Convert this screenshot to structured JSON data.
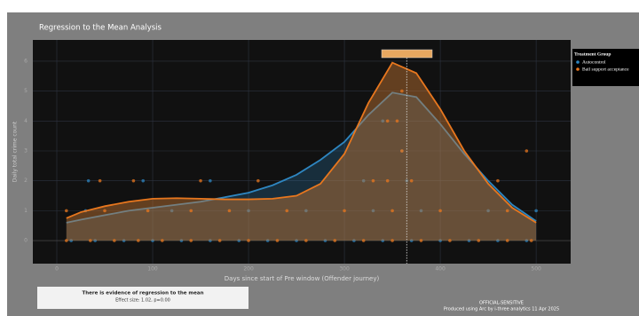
{
  "chart_data": {
    "type": "line",
    "title": "Regression to the Mean Analysis",
    "x_label": "Days since start of Pre window (Offender journey)",
    "y_label": "Daily total crime count",
    "legend_title": "Treatment Group",
    "xlim": [
      -25,
      536
    ],
    "ylim": [
      -0.77,
      6.71
    ],
    "xticks": [
      0,
      100,
      200,
      300,
      400,
      500
    ],
    "yticks": [
      0,
      1,
      2,
      3,
      4,
      5,
      6
    ],
    "grid": true,
    "reference_x": 365,
    "series": [
      {
        "name": "Autocontrol",
        "color": "#2e86c1",
        "fill": "rgba(46,134,193,0.25)",
        "x": [
          10,
          25,
          50,
          75,
          100,
          125,
          150,
          175,
          200,
          225,
          250,
          275,
          300,
          325,
          350,
          375,
          400,
          425,
          450,
          475,
          500
        ],
        "values": [
          0.6,
          0.7,
          0.85,
          1.0,
          1.1,
          1.2,
          1.3,
          1.45,
          1.6,
          1.85,
          2.2,
          2.7,
          3.3,
          4.2,
          4.95,
          4.8,
          3.9,
          2.9,
          2.0,
          1.2,
          0.65
        ],
        "points": {
          "x": [
            15,
            40,
            70,
            100,
            130,
            160,
            190,
            220,
            250,
            280,
            310,
            340,
            370,
            400,
            430,
            460,
            490,
            30,
            120,
            200,
            260,
            330,
            380,
            450,
            500,
            33,
            90,
            160,
            320,
            365,
            360,
            340
          ],
          "y": [
            0,
            0,
            0,
            0,
            0,
            0,
            0,
            0,
            0,
            0,
            0,
            0,
            0,
            0,
            0,
            0,
            0,
            1,
            1,
            1,
            1,
            1,
            1,
            1,
            1,
            2,
            2,
            2,
            2,
            2,
            3,
            4
          ]
        }
      },
      {
        "name": "Bail support acceptance",
        "color": "#e8771e",
        "fill": "rgba(200,120,50,0.45)",
        "x": [
          10,
          25,
          50,
          75,
          100,
          125,
          150,
          175,
          200,
          225,
          250,
          275,
          300,
          325,
          350,
          375,
          400,
          425,
          450,
          475,
          500
        ],
        "values": [
          0.75,
          0.95,
          1.15,
          1.3,
          1.4,
          1.42,
          1.4,
          1.38,
          1.38,
          1.4,
          1.5,
          1.9,
          2.9,
          4.6,
          5.95,
          5.6,
          4.4,
          3.0,
          1.9,
          1.1,
          0.6
        ],
        "points": {
          "x": [
            10,
            35,
            60,
            85,
            110,
            140,
            170,
            200,
            230,
            260,
            290,
            320,
            350,
            380,
            410,
            440,
            470,
            495,
            10,
            50,
            95,
            140,
            180,
            240,
            300,
            350,
            400,
            470,
            45,
            80,
            150,
            210,
            330,
            345,
            370,
            460,
            360,
            490,
            345,
            355,
            360
          ],
          "y": [
            0,
            0,
            0,
            0,
            0,
            0,
            0,
            0,
            0,
            0,
            0,
            0,
            0,
            0,
            0,
            0,
            0,
            0,
            1,
            1,
            1,
            1,
            1,
            1,
            1,
            1,
            1,
            1,
            2,
            2,
            2,
            2,
            2,
            2,
            2,
            2,
            3,
            3,
            4,
            4,
            5
          ]
        }
      }
    ]
  },
  "note": [
    "There is evidence of regression to the mean",
    "Effect size: 1.02, p=0.00"
  ],
  "footer": [
    "OFFICIAL-SENSITIVE",
    "Produced using Arc by i-three analytics 11 Apr 2025"
  ]
}
